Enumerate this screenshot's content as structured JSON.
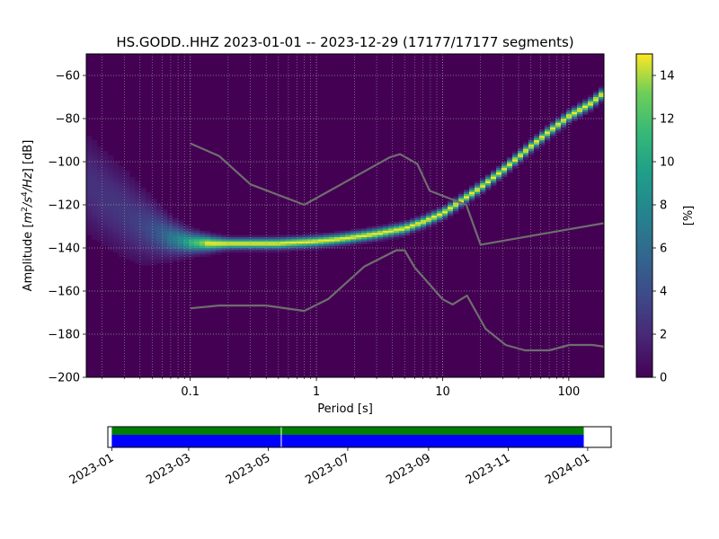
{
  "chart_data": {
    "type": "heatmap",
    "title": "HS.GODD..HHZ   2023-01-01 -- 2023-12-29  (17177/17177 segments)",
    "xlabel": "Period [s]",
    "ylabel_prefix": "Amplitude [",
    "ylabel_unit": "m",
    "ylabel_unit_sup1": "2",
    "ylabel_unit_mid": "/s",
    "ylabel_unit_sup2": "4",
    "ylabel_unit_end": "/Hz",
    "ylabel_suffix": "] [dB]",
    "x_scale": "log",
    "xlim": [
      0.015,
      190
    ],
    "ylim": [
      -200,
      -50
    ],
    "x_ticks": [
      0.1,
      1,
      10,
      100
    ],
    "x_tick_labels": [
      "0.1",
      "1",
      "10",
      "100"
    ],
    "y_ticks": [
      -200,
      -180,
      -160,
      -140,
      -120,
      -100,
      -80,
      -60
    ],
    "y_tick_labels": [
      "−200",
      "−180",
      "−160",
      "−140",
      "−120",
      "−100",
      "−80",
      "−60"
    ],
    "grid": true,
    "colormap": "viridis",
    "colorbar": {
      "label": "[%]",
      "min": 0,
      "max": 15,
      "ticks": [
        0,
        2,
        4,
        6,
        8,
        10,
        12,
        14
      ],
      "tick_labels": [
        "0",
        "2",
        "4",
        "6",
        "8",
        "10",
        "12",
        "14"
      ]
    },
    "mode_curve": {
      "periods": [
        0.015,
        0.02,
        0.03,
        0.04,
        0.05,
        0.07,
        0.1,
        0.15,
        0.2,
        0.3,
        0.5,
        0.7,
        1,
        1.5,
        2,
        3,
        5,
        7,
        10,
        12,
        15,
        20,
        30,
        50,
        70,
        100,
        150,
        190
      ],
      "db": [
        -110,
        -116,
        -124,
        -129,
        -132,
        -135.5,
        -137.5,
        -138,
        -138,
        -138,
        -138,
        -137.5,
        -137,
        -136,
        -135,
        -133.5,
        -131,
        -128,
        -124,
        -121,
        -117,
        -112,
        -104,
        -93,
        -86,
        -79,
        -73,
        -68
      ],
      "spread_db": [
        14,
        13,
        12,
        10,
        8,
        5,
        3,
        2,
        1.5,
        1.5,
        1.5,
        1.5,
        1.5,
        1.5,
        1.5,
        1.5,
        1.5,
        1.5,
        1.5,
        1.5,
        1.5,
        1.5,
        1.5,
        1.5,
        1.5,
        1.5,
        1.5,
        1.5
      ]
    },
    "noise_models": [
      {
        "x": [
          0.1,
          0.17,
          0.3,
          0.8,
          3.8,
          4.6,
          6.3,
          7.9,
          15.4,
          20,
          190
        ],
        "y": [
          -91.5,
          -97.4,
          -110.5,
          -120,
          -98,
          -96.5,
          -101,
          -113.5,
          -120,
          -138.5,
          -128.5
        ]
      },
      {
        "x": [
          0.1,
          0.17,
          0.4,
          0.8,
          1.24,
          2.4,
          4.3,
          5,
          6,
          10,
          12,
          15.6,
          21.9,
          31.6,
          45,
          70,
          101,
          154,
          190
        ],
        "y": [
          -168,
          -166.7,
          -166.7,
          -169.2,
          -163.7,
          -148.6,
          -141.1,
          -141.1,
          -149,
          -163.8,
          -166.2,
          -162.1,
          -177.5,
          -185,
          -187.5,
          -187.5,
          -185,
          -185,
          -185.8
        ]
      }
    ],
    "timeline": {
      "xlim": [
        "2022-12-29",
        "2024-01-19"
      ],
      "tick_labels": [
        "2023-01",
        "2023-03",
        "2023-05",
        "2023-07",
        "2023-09",
        "2023-11",
        "2024-01"
      ],
      "tick_dates": [
        "2023-01-01",
        "2023-03-01",
        "2023-05-01",
        "2023-07-01",
        "2023-09-01",
        "2023-11-01",
        "2024-01-01"
      ],
      "coverage_start": "2023-01-01",
      "coverage_end": "2023-12-29",
      "gap_date": "2023-05-11",
      "top_color": "#008000",
      "bottom_color": "#0000ff"
    }
  }
}
